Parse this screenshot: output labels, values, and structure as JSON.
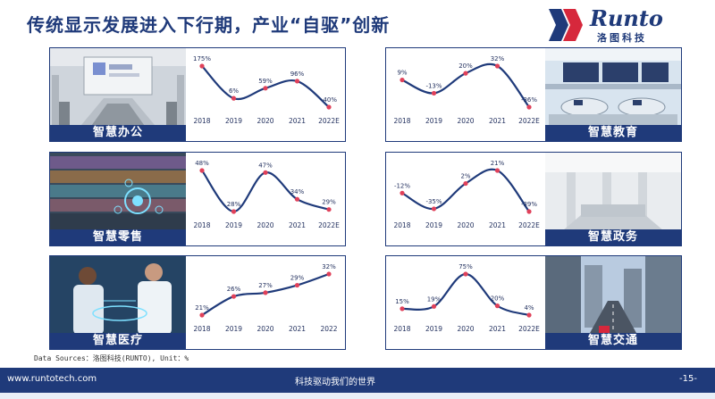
{
  "header": {
    "title": "传统显示发展进入下行期，产业“自驱”创新",
    "logo_word": "Runto",
    "logo_cn": "洛图科技"
  },
  "colors": {
    "brand": "#1f3a7a",
    "point": "#e0415a",
    "line": "#1f3a7a"
  },
  "panels": [
    {
      "caption": "智慧办公",
      "photo": "conference-room",
      "chart_data": {
        "type": "line",
        "x": [
          "2018",
          "2019",
          "2020",
          "2021",
          "2022E"
        ],
        "values": [
          175,
          6,
          59,
          96,
          -40
        ],
        "labels": [
          "175%",
          "6%",
          "59%",
          "96%",
          "-40%"
        ]
      }
    },
    {
      "caption": "智慧教育",
      "photo": "smart-classroom",
      "chart_data": {
        "type": "line",
        "x": [
          "2018",
          "2019",
          "2020",
          "2021",
          "2022E"
        ],
        "values": [
          9,
          -13,
          20,
          32,
          -36
        ],
        "labels": [
          "9%",
          "-13%",
          "20%",
          "32%",
          "-36%"
        ]
      }
    },
    {
      "caption": "智慧零售",
      "photo": "supermarket-shelves",
      "chart_data": {
        "type": "line",
        "x": [
          "2018",
          "2019",
          "2020",
          "2021",
          "2022E"
        ],
        "values": [
          48,
          28,
          47,
          34,
          29
        ],
        "labels": [
          "48%",
          "28%",
          "47%",
          "34%",
          "29%"
        ]
      }
    },
    {
      "caption": "智慧政务",
      "photo": "government-hall",
      "chart_data": {
        "type": "line",
        "x": [
          "2018",
          "2019",
          "2020",
          "2021",
          "2022E"
        ],
        "values": [
          -12,
          -35,
          2,
          21,
          -39
        ],
        "labels": [
          "-12%",
          "-35%",
          "2%",
          "21%",
          "-39%"
        ]
      }
    },
    {
      "caption": "智慧医疗",
      "photo": "doctors-hologram",
      "chart_data": {
        "type": "line",
        "x": [
          "2018",
          "2019",
          "2020",
          "2021",
          "2022"
        ],
        "values": [
          21,
          26,
          27,
          29,
          32
        ],
        "labels": [
          "21%",
          "26%",
          "27%",
          "29%",
          "32%"
        ]
      }
    },
    {
      "caption": "智慧交通",
      "photo": "city-street",
      "chart_data": {
        "type": "line",
        "x": [
          "2018",
          "2019",
          "2020",
          "2021",
          "2022E"
        ],
        "values": [
          15,
          19,
          75,
          20,
          4
        ],
        "labels": [
          "15%",
          "19%",
          "75%",
          "20%",
          "4%"
        ]
      }
    }
  ],
  "source": "Data Sources：洛图科技(RUNTO),  Unit：%",
  "footer": {
    "url": "www.runtotech.com",
    "slogan": "科技驱动我们的世界",
    "page": "-15-"
  }
}
